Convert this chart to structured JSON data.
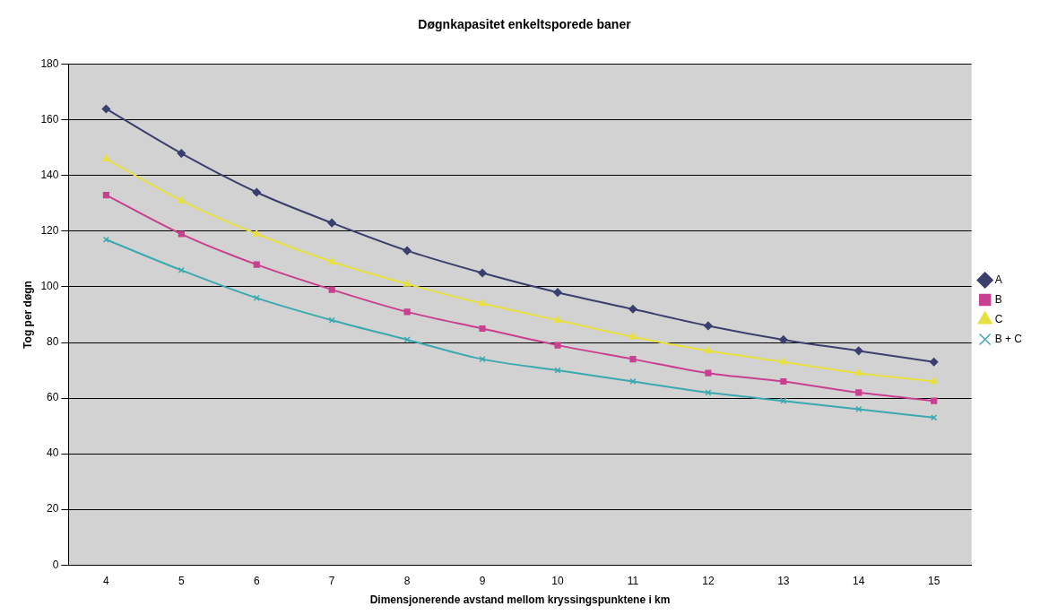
{
  "chart_data": {
    "type": "line",
    "title": "Døgnkapasitet enkeltsporede baner",
    "xlabel": "Dimensjonerende avstand mellom kryssingspunktene i km",
    "ylabel": "Tog per døgn",
    "categories": [
      "4",
      "5",
      "6",
      "7",
      "8",
      "9",
      "10",
      "11",
      "12",
      "13",
      "14",
      "15"
    ],
    "series": [
      {
        "name": "A",
        "color": "#3b3f6e",
        "marker": "diamond",
        "values": [
          164,
          148,
          134,
          123,
          113,
          105,
          98,
          92,
          86,
          81,
          77,
          73
        ]
      },
      {
        "name": "B",
        "color": "#c8408f",
        "marker": "square",
        "values": [
          133,
          119,
          108,
          99,
          91,
          85,
          79,
          74,
          69,
          66,
          62,
          59
        ]
      },
      {
        "name": "C",
        "color": "#e8e040",
        "marker": "triangle",
        "values": [
          146,
          131,
          119,
          109,
          101,
          94,
          88,
          82,
          77,
          73,
          69,
          66
        ]
      },
      {
        "name": "B + C",
        "color": "#3aa9b0",
        "marker": "cross",
        "values": [
          117,
          106,
          96,
          88,
          81,
          74,
          70,
          66,
          62,
          59,
          56,
          53
        ]
      }
    ],
    "ylim": [
      0,
      180
    ],
    "yticks": [
      0,
      20,
      40,
      60,
      80,
      100,
      120,
      140,
      160,
      180
    ],
    "grid": "y",
    "legend": "right"
  }
}
